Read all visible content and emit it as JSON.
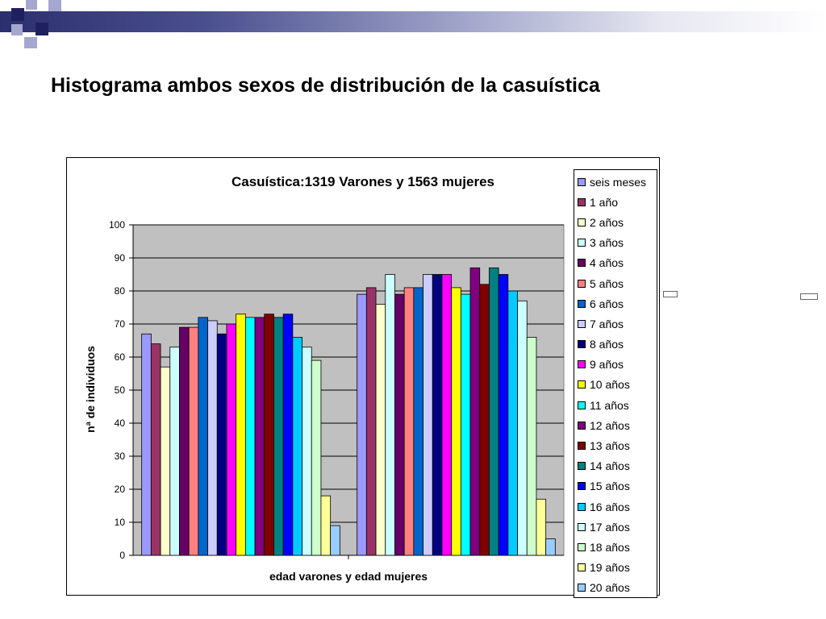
{
  "slide": {
    "title": "Histograma ambos sexos de distribución de la casuística"
  },
  "colors": {
    "banner_dark": "#2b2f6e",
    "square_dark": "#1f2060",
    "square_light": "#a5a7cf",
    "plot_background": "#c0c0c0"
  },
  "chart_data": {
    "type": "bar",
    "title": "Casuística:1319 Varones y 1563 mujeres",
    "xlabel": "edad varones y edad mujeres",
    "ylabel": "nª de individuos",
    "ylim": [
      0,
      100
    ],
    "yticks": [
      0,
      10,
      20,
      30,
      40,
      50,
      60,
      70,
      80,
      90,
      100
    ],
    "grid": true,
    "legend_position": "right",
    "categories": [
      "",
      ""
    ],
    "series": [
      {
        "name": "seis meses",
        "color": "#9999ff",
        "values": [
          67,
          79
        ]
      },
      {
        "name": "1 año",
        "color": "#993366",
        "values": [
          64,
          81
        ]
      },
      {
        "name": "2 años",
        "color": "#ffffcc",
        "values": [
          57,
          76
        ]
      },
      {
        "name": "3 años",
        "color": "#ccffff",
        "values": [
          63,
          85
        ]
      },
      {
        "name": "4 años",
        "color": "#660066",
        "values": [
          69,
          79
        ]
      },
      {
        "name": "5 años",
        "color": "#ff8080",
        "values": [
          69,
          81
        ]
      },
      {
        "name": "6 años",
        "color": "#0066cc",
        "values": [
          72,
          81
        ]
      },
      {
        "name": "7 años",
        "color": "#ccccff",
        "values": [
          71,
          85
        ]
      },
      {
        "name": "8 años",
        "color": "#000080",
        "values": [
          67,
          85
        ]
      },
      {
        "name": "9 años",
        "color": "#ff00ff",
        "values": [
          70,
          85
        ]
      },
      {
        "name": "10 años",
        "color": "#ffff00",
        "values": [
          73,
          81
        ]
      },
      {
        "name": "11 años",
        "color": "#00ffff",
        "values": [
          72,
          79
        ]
      },
      {
        "name": "12 años",
        "color": "#800080",
        "values": [
          72,
          87
        ]
      },
      {
        "name": "13 años",
        "color": "#800000",
        "values": [
          73,
          82
        ]
      },
      {
        "name": "14 años",
        "color": "#008080",
        "values": [
          72,
          87
        ]
      },
      {
        "name": "15 años",
        "color": "#0000ff",
        "values": [
          73,
          85
        ]
      },
      {
        "name": "16 años",
        "color": "#00ccff",
        "values": [
          66,
          80
        ]
      },
      {
        "name": "17 años",
        "color": "#ccffff",
        "values": [
          63,
          77
        ]
      },
      {
        "name": "18 años",
        "color": "#ccffcc",
        "values": [
          59,
          66
        ]
      },
      {
        "name": "19 años",
        "color": "#ffff99",
        "values": [
          18,
          17
        ]
      },
      {
        "name": "20 años",
        "color": "#99ccff",
        "values": [
          9,
          5
        ]
      }
    ]
  }
}
